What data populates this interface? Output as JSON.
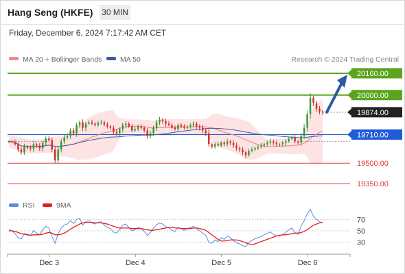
{
  "header": {
    "title": "Hang Seng (HKFE)",
    "timeframe": "30 MIN",
    "datetime": "Friday, December 6, 2024 7:17:42 AM CET"
  },
  "legend": {
    "ma20_bb": "MA 20 + Bollinger Bands",
    "ma50": "MA 50",
    "credit": "Research © 2024 Trading Central"
  },
  "colors": {
    "target": "#5aa51d",
    "current": "#222222",
    "pivot": "#1f5cd6",
    "support": "#e03b3b",
    "bands": "#fcd9d9",
    "ma20": "#ef8a8a",
    "ma50": "#3d5a9e",
    "rsi": "#5b8be0",
    "rsi_ma": "#e51b1b",
    "candle_up": "#2f9a2f",
    "candle_down": "#d42e2e",
    "arrow": "#2b5aa6"
  },
  "chart_data": [
    {
      "type": "candlestick",
      "x_ticks": [
        "Dec 3",
        "Dec 4",
        "Dec 5",
        "Dec 6"
      ],
      "ylim": [
        19280,
        20210
      ],
      "levels": [
        {
          "role": "target",
          "value": 20160,
          "label": "20160.00"
        },
        {
          "role": "target",
          "value": 20000,
          "label": "20000.00"
        },
        {
          "role": "current",
          "value": 19874,
          "label": "19874.00"
        },
        {
          "role": "pivot",
          "value": 19710,
          "label": "19710.00"
        },
        {
          "role": "support",
          "value": 19500,
          "label": "19500.00"
        },
        {
          "role": "support",
          "value": 19350,
          "label": "19350.00"
        }
      ],
      "close": [
        19660,
        19655,
        19640,
        19600,
        19580,
        19620,
        19615,
        19605,
        19640,
        19630,
        19610,
        19650,
        19680,
        19670,
        19600,
        19520,
        19600,
        19660,
        19690,
        19700,
        19740,
        19720,
        19780,
        19800,
        19760,
        19790,
        19800,
        19790,
        19780,
        19795,
        19800,
        19785,
        19770,
        19760,
        19730,
        19720,
        19750,
        19780,
        19790,
        19770,
        19740,
        19750,
        19770,
        19760,
        19740,
        19700,
        19720,
        19760,
        19800,
        19820,
        19810,
        19790,
        19780,
        19760,
        19750,
        19780,
        19770,
        19760,
        19770,
        19780,
        19790,
        19770,
        19760,
        19740,
        19720,
        19640,
        19620,
        19640,
        19630,
        19650,
        19640,
        19660,
        19650,
        19630,
        19610,
        19600,
        19580,
        19560,
        19590,
        19600,
        19610,
        19620,
        19630,
        19640,
        19650,
        19660,
        19650,
        19640,
        19640,
        19650,
        19660,
        19680,
        19690,
        19660,
        19650,
        19700,
        19760,
        19860,
        19980,
        19940,
        19900,
        19880,
        19874
      ],
      "rsi_ylim": [
        15,
        85
      ],
      "rsi_ticks": [
        70,
        50,
        30
      ],
      "rsi": [
        52,
        50,
        45,
        38,
        36,
        45,
        44,
        42,
        50,
        46,
        43,
        52,
        58,
        55,
        40,
        28,
        45,
        55,
        60,
        62,
        68,
        63,
        70,
        72,
        60,
        66,
        68,
        64,
        62,
        65,
        66,
        60,
        56,
        54,
        48,
        46,
        52,
        60,
        62,
        56,
        50,
        52,
        56,
        54,
        49,
        42,
        47,
        55,
        61,
        64,
        62,
        57,
        55,
        51,
        49,
        56,
        54,
        51,
        54,
        56,
        58,
        53,
        50,
        46,
        42,
        30,
        28,
        34,
        31,
        38,
        35,
        41,
        38,
        33,
        29,
        27,
        24,
        22,
        30,
        33,
        36,
        38,
        40,
        43,
        45,
        48,
        44,
        41,
        41,
        44,
        47,
        52,
        55,
        47,
        44,
        58,
        68,
        80,
        88,
        76,
        70,
        66,
        64
      ],
      "rsi_ma": [
        50,
        50,
        49,
        47,
        45,
        44,
        43,
        42,
        43,
        43,
        43,
        44,
        46,
        47,
        46,
        43,
        43,
        44,
        46,
        49,
        53,
        56,
        59,
        62,
        64,
        65,
        65,
        65,
        64,
        64,
        64,
        63,
        62,
        60,
        58,
        56,
        55,
        55,
        55,
        55,
        54,
        54,
        54,
        54,
        53,
        52,
        51,
        51,
        52,
        53,
        54,
        55,
        56,
        56,
        55,
        55,
        54,
        54,
        54,
        54,
        55,
        55,
        54,
        53,
        51,
        47,
        43,
        39,
        35,
        32,
        32,
        33,
        34,
        34,
        34,
        33,
        31,
        29,
        27,
        26,
        27,
        29,
        31,
        33,
        35,
        37,
        39,
        41,
        42,
        43,
        43,
        44,
        45,
        46,
        46,
        47,
        49,
        52,
        56,
        60,
        62,
        64,
        65
      ],
      "rsi_ma_name": "9MA",
      "rsi_name": "RSI"
    }
  ]
}
